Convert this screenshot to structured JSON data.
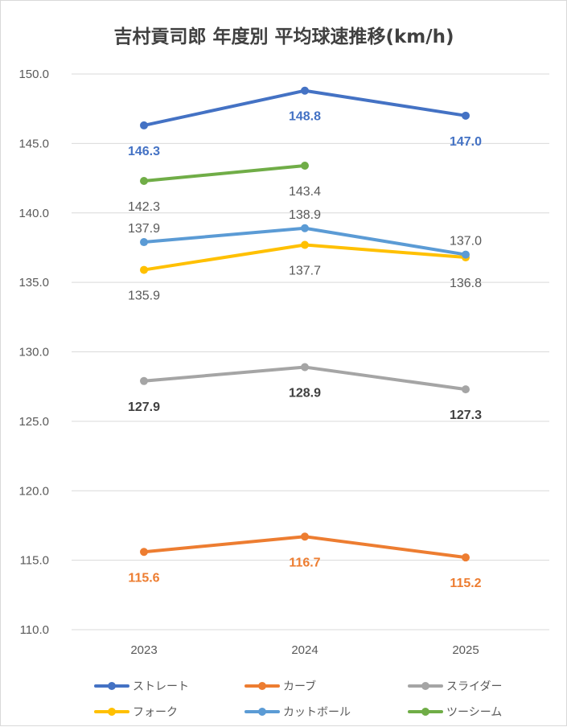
{
  "chart_data": {
    "type": "line",
    "title": "吉村貢司郎 年度別 平均球速推移(km/h)",
    "xlabel": "",
    "ylabel": "",
    "categories": [
      "2023",
      "2024",
      "2025"
    ],
    "ylim": [
      110,
      150
    ],
    "ytick_labels": [
      "150.0",
      "145.0",
      "140.0",
      "135.0",
      "130.0",
      "125.0",
      "120.0",
      "115.0",
      "110.0"
    ],
    "grid": true,
    "legend_position": "bottom",
    "series": [
      {
        "name": "ストレート",
        "color": "#4472c4",
        "values": [
          146.3,
          148.8,
          147.0
        ],
        "labels": [
          "146.3",
          "148.8",
          "147.0"
        ],
        "label_pos": "below",
        "label_bold": true
      },
      {
        "name": "カーブ",
        "color": "#ed7d31",
        "values": [
          115.6,
          116.7,
          115.2
        ],
        "labels": [
          "115.6",
          "116.7",
          "115.2"
        ],
        "label_pos": "below",
        "label_bold": true
      },
      {
        "name": "スライダー",
        "color": "#a5a5a5",
        "values": [
          127.9,
          128.9,
          127.3
        ],
        "labels": [
          "127.9",
          "128.9",
          "127.3"
        ],
        "label_pos": "below",
        "label_bold": true
      },
      {
        "name": "フォーク",
        "color": "#ffc000",
        "values": [
          135.9,
          137.7,
          136.8
        ],
        "labels": [
          "135.9",
          "137.7",
          "136.8"
        ],
        "label_pos": "below",
        "label_bold": false
      },
      {
        "name": "カットボール",
        "color": "#5b9bd5",
        "values": [
          137.9,
          138.9,
          137.0
        ],
        "labels": [
          "137.9",
          "138.9",
          "137.0"
        ],
        "label_pos": "above",
        "label_bold": false
      },
      {
        "name": "ツーシーム",
        "color": "#70ad47",
        "values": [
          142.3,
          143.4,
          null
        ],
        "labels": [
          "142.3",
          "143.4",
          ""
        ],
        "label_pos": "below",
        "label_bold": false
      }
    ]
  }
}
